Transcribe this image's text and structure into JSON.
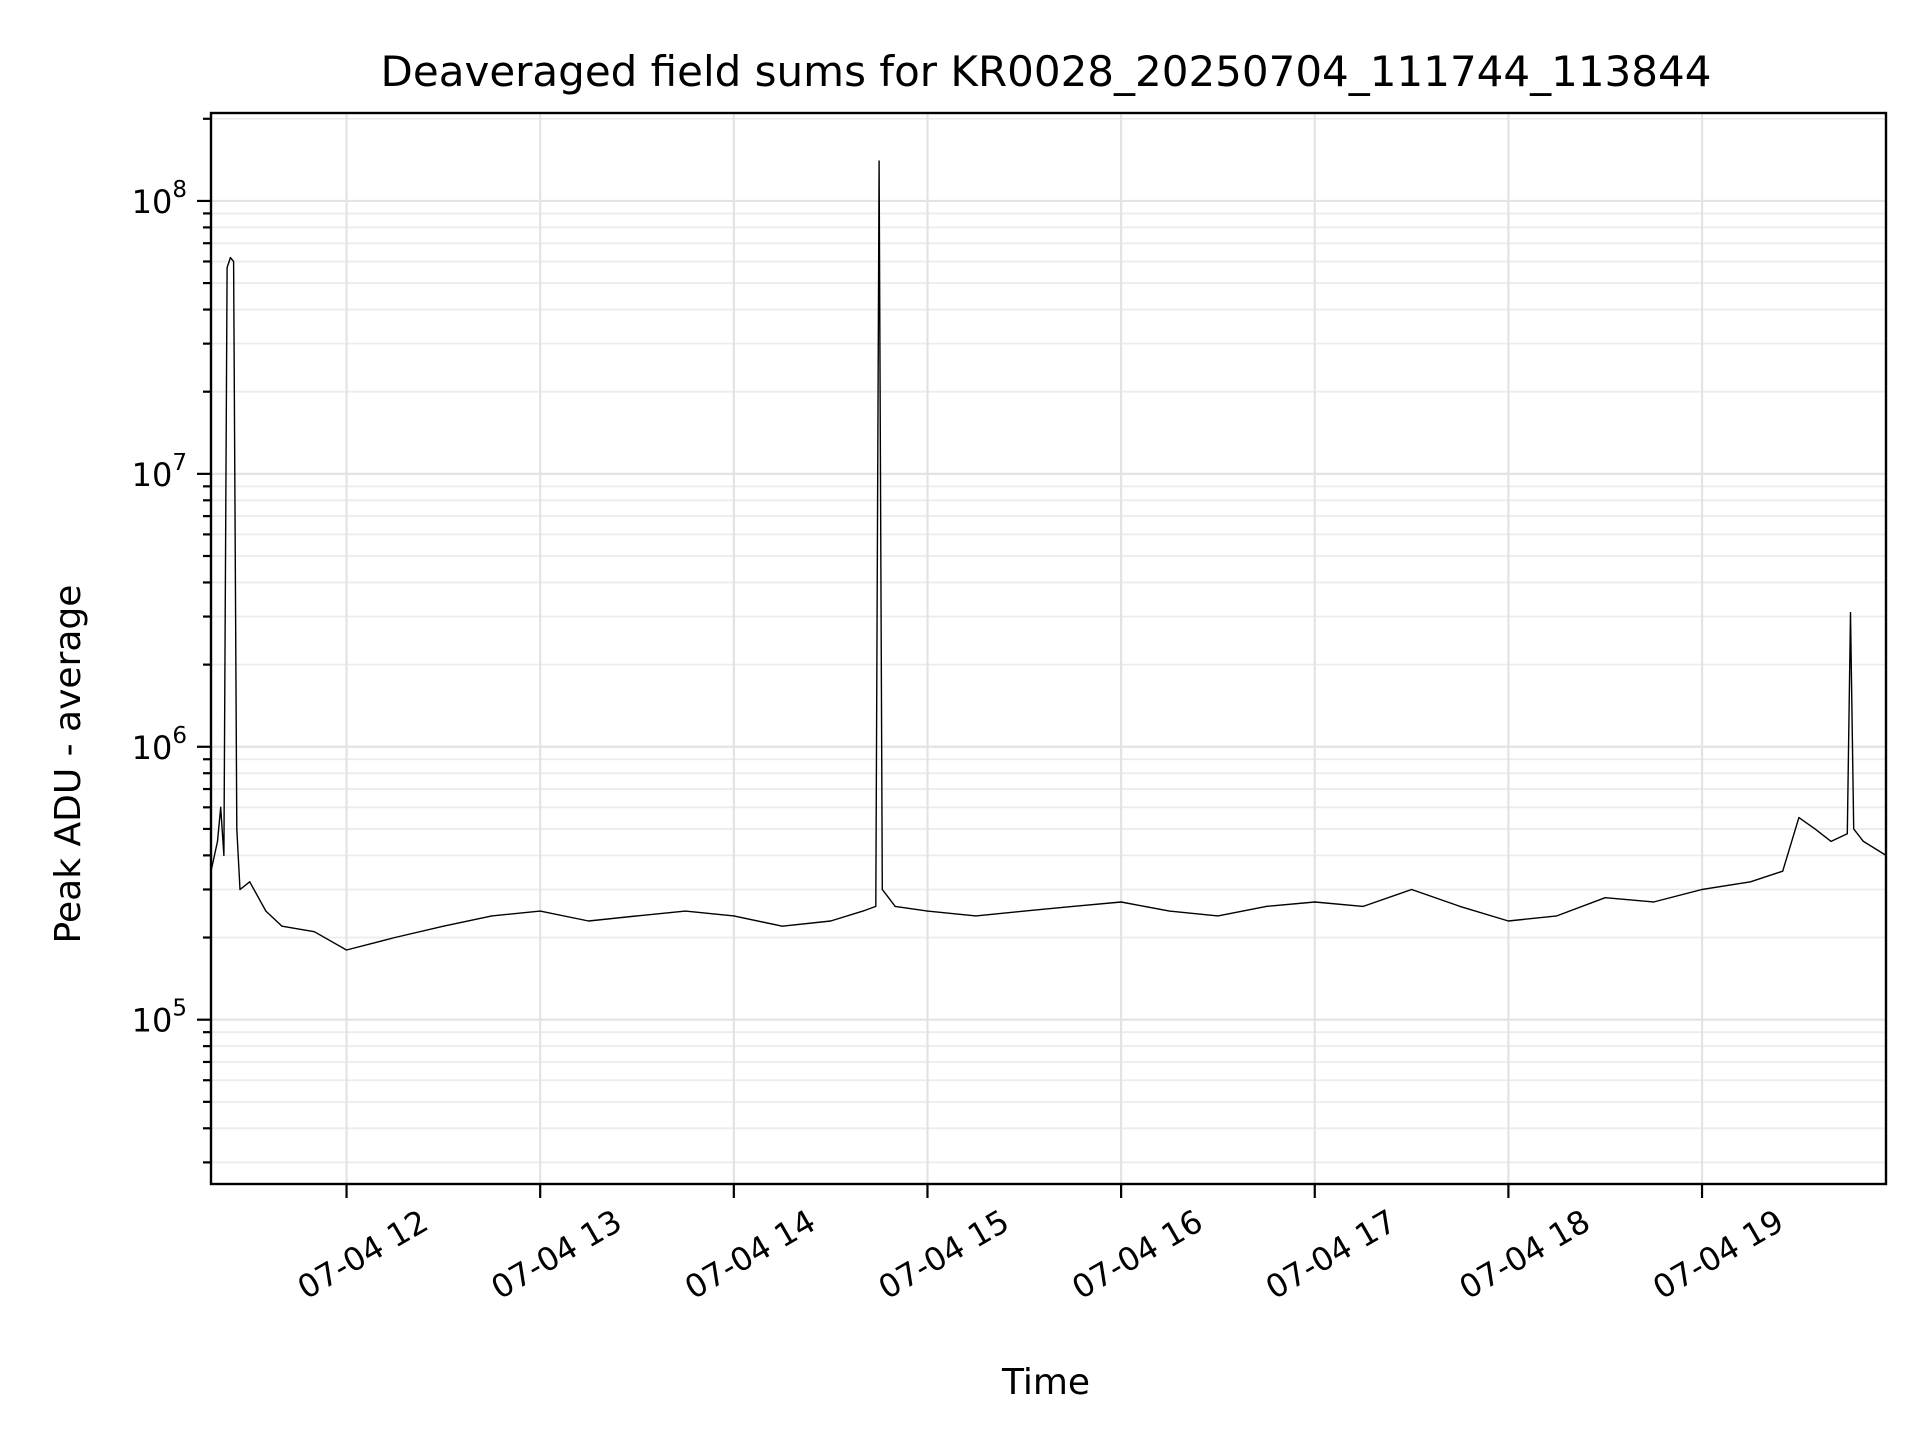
{
  "chart_data": {
    "type": "line",
    "title": "Deaveraged field sums for KR0028_20250704_111744_113844",
    "xlabel": "Time",
    "ylabel": "Peak ADU - average",
    "yscale": "log",
    "xlim": [
      "2025-07-04 11:18",
      "2025-07-04 19:57"
    ],
    "ylim": [
      25000,
      210000000
    ],
    "x_ticks": [
      {
        "label": "07-04 12",
        "value": "2025-07-04 12:00"
      },
      {
        "label": "07-04 13",
        "value": "2025-07-04 13:00"
      },
      {
        "label": "07-04 14",
        "value": "2025-07-04 14:00"
      },
      {
        "label": "07-04 15",
        "value": "2025-07-04 15:00"
      },
      {
        "label": "07-04 16",
        "value": "2025-07-04 16:00"
      },
      {
        "label": "07-04 17",
        "value": "2025-07-04 17:00"
      },
      {
        "label": "07-04 18",
        "value": "2025-07-04 18:00"
      },
      {
        "label": "07-04 19",
        "value": "2025-07-04 19:00"
      }
    ],
    "y_ticks": [
      {
        "base": "10",
        "exp": "5",
        "value": 100000
      },
      {
        "base": "10",
        "exp": "6",
        "value": 1000000
      },
      {
        "base": "10",
        "exp": "7",
        "value": 10000000
      },
      {
        "base": "10",
        "exp": "8",
        "value": 100000000
      }
    ],
    "grid": true,
    "series": [
      {
        "color": "#000000",
        "x": [
          "2025-07-04 11:18",
          "2025-07-04 11:20",
          "2025-07-04 11:21",
          "2025-07-04 11:22",
          "2025-07-04 11:23",
          "2025-07-04 11:24",
          "2025-07-04 11:25",
          "2025-07-04 11:26",
          "2025-07-04 11:27",
          "2025-07-04 11:30",
          "2025-07-04 11:35",
          "2025-07-04 11:40",
          "2025-07-04 11:50",
          "2025-07-04 12:00",
          "2025-07-04 12:15",
          "2025-07-04 12:30",
          "2025-07-04 12:45",
          "2025-07-04 13:00",
          "2025-07-04 13:15",
          "2025-07-04 13:30",
          "2025-07-04 13:45",
          "2025-07-04 14:00",
          "2025-07-04 14:15",
          "2025-07-04 14:30",
          "2025-07-04 14:40",
          "2025-07-04 14:44",
          "2025-07-04 14:45",
          "2025-07-04 14:46",
          "2025-07-04 14:50",
          "2025-07-04 15:00",
          "2025-07-04 15:15",
          "2025-07-04 15:30",
          "2025-07-04 15:45",
          "2025-07-04 16:00",
          "2025-07-04 16:15",
          "2025-07-04 16:30",
          "2025-07-04 16:45",
          "2025-07-04 17:00",
          "2025-07-04 17:15",
          "2025-07-04 17:30",
          "2025-07-04 17:45",
          "2025-07-04 18:00",
          "2025-07-04 18:15",
          "2025-07-04 18:30",
          "2025-07-04 18:45",
          "2025-07-04 19:00",
          "2025-07-04 19:15",
          "2025-07-04 19:25",
          "2025-07-04 19:30",
          "2025-07-04 19:35",
          "2025-07-04 19:40",
          "2025-07-04 19:45",
          "2025-07-04 19:46",
          "2025-07-04 19:47",
          "2025-07-04 19:50",
          "2025-07-04 19:57"
        ],
        "y": [
          350000,
          450000,
          600000,
          400000,
          57000000,
          62000000,
          60000000,
          500000,
          300000,
          320000,
          250000,
          220000,
          210000,
          180000,
          200000,
          220000,
          240000,
          250000,
          230000,
          240000,
          250000,
          240000,
          220000,
          230000,
          250000,
          260000,
          140000000,
          300000,
          260000,
          250000,
          240000,
          250000,
          260000,
          270000,
          250000,
          240000,
          260000,
          270000,
          260000,
          300000,
          260000,
          230000,
          240000,
          280000,
          270000,
          300000,
          320000,
          350000,
          550000,
          500000,
          450000,
          480000,
          3100000,
          500000,
          450000,
          400000
        ]
      }
    ]
  }
}
